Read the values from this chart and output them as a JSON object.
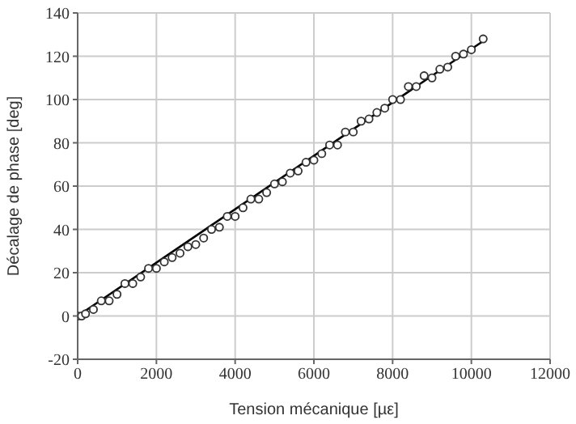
{
  "chart_data": {
    "type": "scatter",
    "xlabel": "Tension mécanique [µε]",
    "ylabel": "Décalage de phase [deg]",
    "xlim": [
      0,
      12000
    ],
    "xticks": [
      0,
      2000,
      4000,
      6000,
      8000,
      10000,
      12000
    ],
    "ylim": [
      -20,
      140
    ],
    "yticks": [
      -20,
      0,
      20,
      40,
      60,
      80,
      100,
      120,
      140
    ],
    "grid": true,
    "series": [
      {
        "marker": "circle",
        "color": "#333333",
        "x": [
          0,
          100,
          200,
          400,
          600,
          800,
          1000,
          1200,
          1400,
          1600,
          1800,
          2000,
          2200,
          2400,
          2600,
          2800,
          3000,
          3200,
          3400,
          3600,
          3800,
          4000,
          4200,
          4400,
          4600,
          4800,
          5000,
          5200,
          5400,
          5600,
          5800,
          6000,
          6200,
          6400,
          6600,
          6800,
          7000,
          7200,
          7400,
          7600,
          7800,
          8000,
          8200,
          8400,
          8600,
          8800,
          9000,
          9200,
          9400,
          9600,
          9800,
          10000,
          10300
        ],
        "values": [
          0,
          0,
          1,
          3,
          7,
          7,
          10,
          15,
          15,
          18,
          22,
          22,
          25,
          27,
          29,
          32,
          33,
          36,
          40,
          41,
          46,
          46,
          50,
          54,
          54,
          57,
          61,
          62,
          66,
          67,
          71,
          72,
          75,
          79,
          79,
          85,
          85,
          90,
          91,
          94,
          96,
          100,
          100,
          106,
          106,
          111,
          110,
          114,
          115,
          120,
          121,
          123,
          128
        ]
      },
      {
        "type": "line",
        "marker": "none",
        "color": "#000000",
        "x": [
          0,
          10300
        ],
        "values": [
          0,
          127
        ]
      }
    ]
  }
}
